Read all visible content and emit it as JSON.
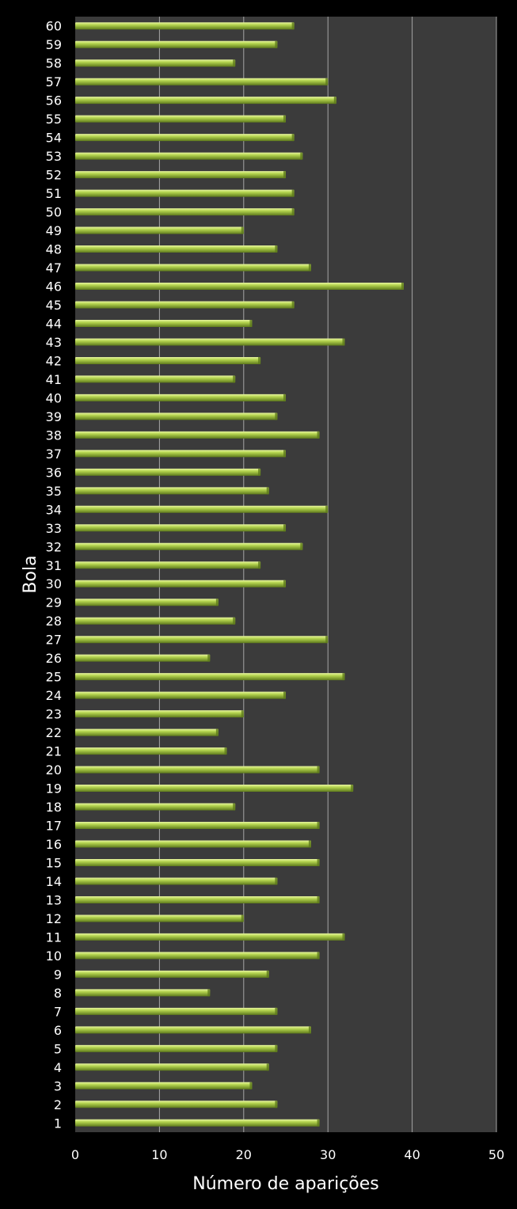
{
  "chart_data": {
    "type": "bar",
    "orientation": "horizontal",
    "xlabel": "Número de aparições",
    "ylabel": "Bola",
    "xlim": [
      0,
      50
    ],
    "xticks": [
      "0",
      "10",
      "20",
      "30",
      "40",
      "50"
    ],
    "grid": true,
    "colors": {
      "background": "#000000",
      "plot_area": "#3b3b3b",
      "gridline": "#a6a6a6",
      "bar_light": "#e8f5a0",
      "bar_main": "#b5d550",
      "bar_dark": "#5e7a1c",
      "text": "#ffffff"
    },
    "categories": [
      "1",
      "2",
      "3",
      "4",
      "5",
      "6",
      "7",
      "8",
      "9",
      "10",
      "11",
      "12",
      "13",
      "14",
      "15",
      "16",
      "17",
      "18",
      "19",
      "20",
      "21",
      "22",
      "23",
      "24",
      "25",
      "26",
      "27",
      "28",
      "29",
      "30",
      "31",
      "32",
      "33",
      "34",
      "35",
      "36",
      "37",
      "38",
      "39",
      "40",
      "41",
      "42",
      "43",
      "44",
      "45",
      "46",
      "47",
      "48",
      "49",
      "50",
      "51",
      "52",
      "53",
      "54",
      "55",
      "56",
      "57",
      "58",
      "59",
      "60"
    ],
    "values": [
      29,
      24,
      21,
      23,
      24,
      28,
      24,
      16,
      23,
      29,
      32,
      20,
      29,
      24,
      29,
      28,
      29,
      19,
      33,
      29,
      18,
      17,
      20,
      25,
      32,
      16,
      30,
      19,
      17,
      25,
      22,
      27,
      25,
      30,
      23,
      22,
      25,
      29,
      24,
      25,
      19,
      22,
      32,
      21,
      26,
      39,
      28,
      24,
      20,
      26,
      26,
      25,
      27,
      26,
      25,
      31,
      30,
      19,
      24,
      26
    ]
  }
}
